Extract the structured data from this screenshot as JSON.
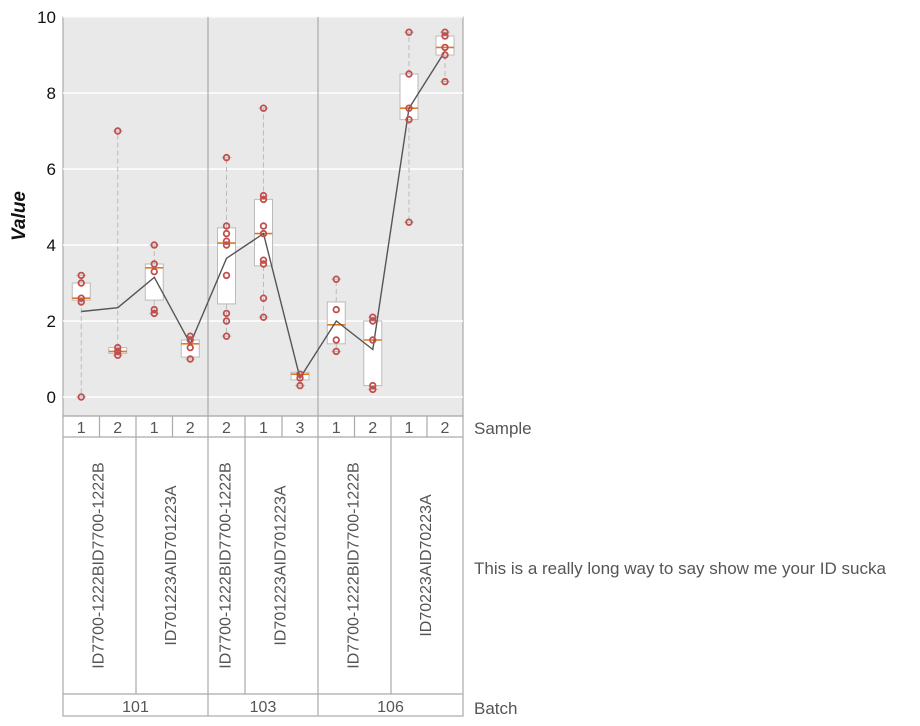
{
  "chart_data": {
    "type": "box",
    "ylabel": "Value",
    "ylim": [
      -0.5,
      10
    ],
    "yticks": [
      0,
      2,
      4,
      6,
      8,
      10
    ],
    "grid": true,
    "boxes": [
      {
        "batch": "101",
        "id": "ID7700-1222B",
        "sample": "1",
        "q1": 2.55,
        "median": 2.6,
        "q3": 3.0,
        "whisker_low": 0.0,
        "whisker_high": 3.2,
        "mean": 2.25,
        "points": [
          0.0,
          2.5,
          2.6,
          3.0,
          3.2
        ]
      },
      {
        "batch": "101",
        "id": "ID7700-1222B",
        "sample": "2",
        "q1": 1.15,
        "median": 1.2,
        "q3": 1.3,
        "whisker_low": 1.1,
        "whisker_high": 7.0,
        "mean": 2.35,
        "points": [
          1.1,
          1.2,
          1.3,
          7.0
        ]
      },
      {
        "batch": "101",
        "id": "ID701223A",
        "sample": "1",
        "q1": 2.55,
        "median": 3.4,
        "q3": 3.5,
        "whisker_low": 2.2,
        "whisker_high": 4.0,
        "mean": 3.15,
        "points": [
          2.2,
          2.3,
          3.3,
          3.5,
          4.0
        ]
      },
      {
        "batch": "101",
        "id": "ID701223A",
        "sample": "2",
        "q1": 1.05,
        "median": 1.4,
        "q3": 1.5,
        "whisker_low": 1.0,
        "whisker_high": 1.6,
        "mean": 1.4,
        "points": [
          1.0,
          1.3,
          1.5,
          1.6
        ]
      },
      {
        "batch": "103",
        "id": "ID7700-1222B",
        "sample": "2",
        "q1": 2.45,
        "median": 4.05,
        "q3": 4.45,
        "whisker_low": 1.6,
        "whisker_high": 6.3,
        "mean": 3.65,
        "points": [
          1.6,
          2.0,
          2.2,
          3.2,
          4.0,
          4.1,
          4.3,
          4.5,
          6.3
        ]
      },
      {
        "batch": "103",
        "id": "ID701223A",
        "sample": "1",
        "q1": 3.45,
        "median": 4.3,
        "q3": 5.2,
        "whisker_low": 2.1,
        "whisker_high": 7.6,
        "mean": 4.3,
        "points": [
          2.1,
          2.6,
          3.5,
          3.6,
          4.3,
          4.5,
          5.2,
          5.3,
          7.6
        ]
      },
      {
        "batch": "103",
        "id": "ID701223A",
        "sample": "3",
        "q1": 0.45,
        "median": 0.6,
        "q3": 0.65,
        "whisker_low": 0.3,
        "whisker_high": 0.65,
        "mean": 0.5,
        "points": [
          0.3,
          0.5,
          0.6
        ]
      },
      {
        "batch": "106",
        "id": "ID7700-1222B",
        "sample": "1",
        "q1": 1.4,
        "median": 1.9,
        "q3": 2.5,
        "whisker_low": 1.2,
        "whisker_high": 3.1,
        "mean": 2.0,
        "points": [
          1.2,
          1.5,
          2.3,
          3.1
        ]
      },
      {
        "batch": "106",
        "id": "ID7700-1222B",
        "sample": "2",
        "q1": 0.3,
        "median": 1.5,
        "q3": 2.0,
        "whisker_low": 0.2,
        "whisker_high": 2.1,
        "mean": 1.25,
        "points": [
          0.2,
          0.3,
          1.5,
          2.0,
          2.1
        ]
      },
      {
        "batch": "106",
        "id": "ID70223A",
        "sample": "1",
        "q1": 7.3,
        "median": 7.6,
        "q3": 8.5,
        "whisker_low": 4.6,
        "whisker_high": 9.6,
        "mean": 7.6,
        "points": [
          4.6,
          7.3,
          7.6,
          8.5,
          9.6
        ]
      },
      {
        "batch": "106",
        "id": "ID70223A",
        "sample": "2",
        "q1": 9.0,
        "median": 9.2,
        "q3": 9.5,
        "whisker_low": 8.3,
        "whisker_high": 9.6,
        "mean": 9.1,
        "points": [
          8.3,
          9.0,
          9.2,
          9.5,
          9.6
        ]
      }
    ],
    "row_titles": {
      "sample": "Sample",
      "id": "This is a really long way to say show me your ID sucka",
      "batch": "Batch"
    },
    "colors": {
      "panel_bg": "#e9e9e9",
      "box_fill": "#ffffff",
      "box_edge": "#bbbbbb",
      "median": "#e07a1f",
      "point_edge": "#c0504d",
      "mean_line": "#555555",
      "whisker": "#bbbbbb",
      "frame": "#aaaaaa"
    }
  }
}
